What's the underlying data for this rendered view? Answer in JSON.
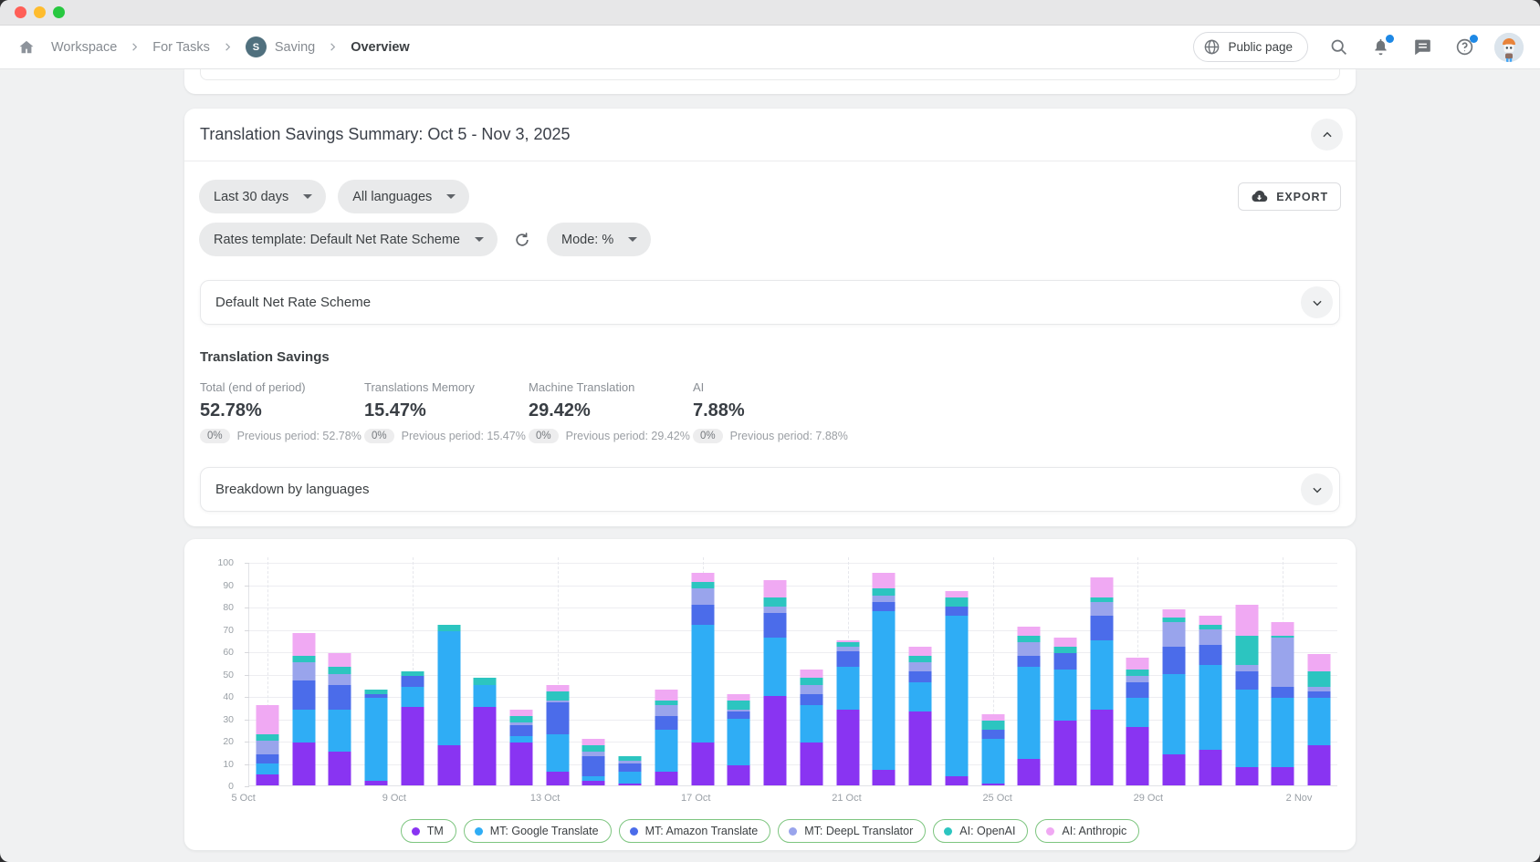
{
  "nav": {
    "breadcrumbs": [
      {
        "label": "Workspace"
      },
      {
        "label": "For Tasks"
      },
      {
        "label": "Saving",
        "badge": "S"
      },
      {
        "label": "Overview"
      }
    ],
    "public_page_label": "Public page"
  },
  "summary_card": {
    "title": "Translation Savings Summary: Oct 5 - Nov 3, 2025",
    "filters": {
      "date_range": "Last 30 days",
      "languages": "All languages",
      "rates_template": "Rates template: Default Net Rate Scheme",
      "mode": "Mode: %"
    },
    "export_label": "EXPORT",
    "scheme_panel_title": "Default Net Rate Scheme",
    "stats": {
      "heading": "Translation Savings",
      "items": [
        {
          "label": "Total (end of period)",
          "value": "52.78%",
          "delta": "0%",
          "previous": "Previous period: 52.78%"
        },
        {
          "label": "Translations Memory",
          "value": "15.47%",
          "delta": "0%",
          "previous": "Previous period: 15.47%"
        },
        {
          "label": "Machine Translation",
          "value": "29.42%",
          "delta": "0%",
          "previous": "Previous period: 29.42%"
        },
        {
          "label": "AI",
          "value": "7.88%",
          "delta": "0%",
          "previous": "Previous period: 7.88%"
        }
      ]
    },
    "breakdown_panel_title": "Breakdown by languages"
  },
  "chart_data": {
    "type": "bar",
    "stacked": true,
    "title": "",
    "xlabel": "",
    "ylabel": "",
    "ylim": [
      0,
      100
    ],
    "y_ticks": [
      0,
      10,
      20,
      30,
      40,
      50,
      60,
      70,
      80,
      90,
      100
    ],
    "grid": true,
    "legend_position": "bottom",
    "x": [
      "5 Oct",
      "6 Oct",
      "7 Oct",
      "8 Oct",
      "9 Oct",
      "10 Oct",
      "11 Oct",
      "12 Oct",
      "13 Oct",
      "14 Oct",
      "15 Oct",
      "16 Oct",
      "17 Oct",
      "18 Oct",
      "19 Oct",
      "20 Oct",
      "21 Oct",
      "22 Oct",
      "23 Oct",
      "24 Oct",
      "25 Oct",
      "26 Oct",
      "27 Oct",
      "28 Oct",
      "29 Oct",
      "30 Oct",
      "31 Oct",
      "1 Nov",
      "2 Nov",
      "3 Nov"
    ],
    "x_tick_labels": [
      "5 Oct",
      "9 Oct",
      "13 Oct",
      "17 Oct",
      "21 Oct",
      "25 Oct",
      "29 Oct",
      "2 Nov"
    ],
    "x_tick_every": 4,
    "series": [
      {
        "name": "TM",
        "color": "#8934f2",
        "values": [
          5,
          19,
          15,
          2,
          35,
          18,
          35,
          19,
          6,
          2,
          1,
          6,
          19,
          9,
          40,
          19,
          34,
          7,
          33,
          4,
          1,
          12,
          29,
          34,
          26,
          14,
          16,
          8,
          8,
          18
        ]
      },
      {
        "name": "MT: Google Translate",
        "color": "#2fadf5",
        "values": [
          5,
          15,
          19,
          37,
          9,
          51,
          10,
          3,
          17,
          2,
          5,
          19,
          53,
          21,
          26,
          17,
          19,
          71,
          13,
          72,
          20,
          41,
          23,
          31,
          13,
          36,
          38,
          35,
          31,
          21
        ]
      },
      {
        "name": "MT: Amazon Translate",
        "color": "#4b6cea",
        "values": [
          4,
          13,
          11,
          2,
          5,
          0,
          0,
          5,
          14,
          9,
          4,
          6,
          9,
          3,
          11,
          5,
          7,
          4,
          5,
          4,
          4,
          5,
          7,
          11,
          7,
          12,
          9,
          8,
          5,
          3
        ]
      },
      {
        "name": "MT: DeepL Translator",
        "color": "#99a4ec",
        "values": [
          6,
          8,
          5,
          0,
          0,
          0,
          0,
          1,
          1,
          2,
          1,
          5,
          7,
          1,
          3,
          4,
          2,
          3,
          4,
          0,
          0,
          6,
          0,
          6,
          3,
          11,
          7,
          3,
          22,
          2
        ]
      },
      {
        "name": "AI: OpenAI",
        "color": "#2cc5c0",
        "values": [
          3,
          3,
          3,
          2,
          2,
          3,
          3,
          3,
          4,
          3,
          2,
          2,
          3,
          4,
          4,
          3,
          2,
          3,
          3,
          4,
          4,
          3,
          3,
          2,
          3,
          2,
          2,
          13,
          1,
          7
        ]
      },
      {
        "name": "AI: Anthropic",
        "color": "#f0a9f3",
        "values": [
          13,
          10,
          6,
          0,
          0,
          0,
          0,
          3,
          3,
          3,
          0,
          5,
          4,
          3,
          8,
          4,
          1,
          7,
          4,
          3,
          3,
          4,
          4,
          9,
          5,
          4,
          4,
          14,
          6,
          8
        ]
      }
    ]
  }
}
